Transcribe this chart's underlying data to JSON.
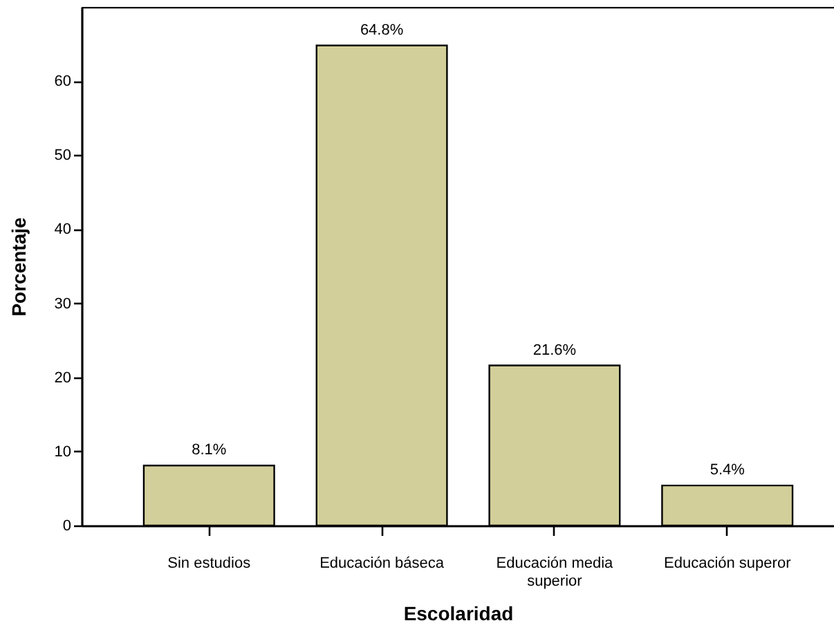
{
  "chart_data": {
    "type": "bar",
    "xlabel": "Escolaridad",
    "ylabel": "Porcentaje",
    "categories": [
      "Sin estudios",
      "Educación báseca",
      "Educación media superior",
      "Educación superor"
    ],
    "values": [
      8.1,
      64.8,
      21.6,
      5.4
    ],
    "value_labels": [
      "8.1%",
      "64.8%",
      "21.6%",
      "5.4%"
    ],
    "color": "#d3cf9a",
    "ylim": [
      0,
      70
    ],
    "yticks": [
      0,
      10,
      20,
      30,
      40,
      50,
      60
    ],
    "grid": false
  }
}
